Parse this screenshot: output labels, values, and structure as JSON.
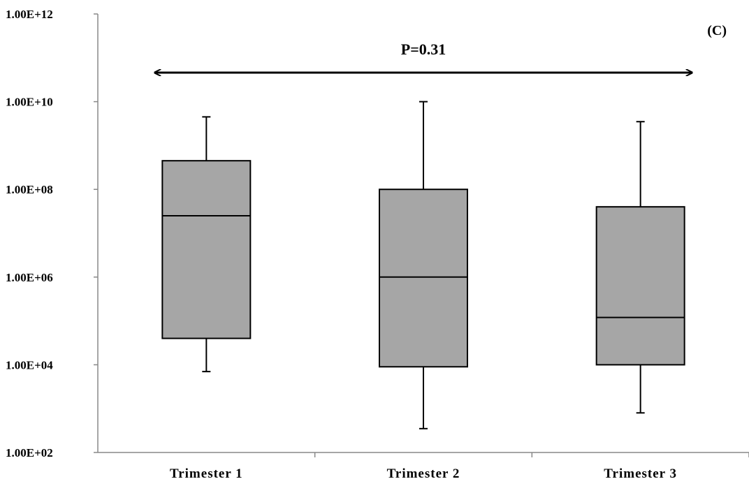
{
  "chart_data": {
    "type": "boxplot",
    "panel_label": "(C)",
    "y_scale": "log10",
    "ylim": [
      100,
      1000000000000
    ],
    "yticks": [
      {
        "value": 100,
        "label": "1.00E+02"
      },
      {
        "value": 10000,
        "label": "1.00E+04"
      },
      {
        "value": 1000000,
        "label": "1.00E+06"
      },
      {
        "value": 100000000,
        "label": "1.00E+08"
      },
      {
        "value": 10000000000,
        "label": "1.00E+10"
      },
      {
        "value": 1000000000000,
        "label": "1.00E+12"
      }
    ],
    "categories": [
      "Trimester 1",
      "Trimester 2",
      "Trimester 3"
    ],
    "boxes": [
      {
        "category": "Trimester 1",
        "min": 7000,
        "q1": 40000,
        "median": 25000000,
        "q3": 450000000,
        "max": 4500000000
      },
      {
        "category": "Trimester 2",
        "min": 350,
        "q1": 9000,
        "median": 1000000,
        "q3": 100000000,
        "max": 10000000000
      },
      {
        "category": "Trimester 3",
        "min": 800,
        "q1": 10000,
        "median": 120000,
        "q3": 40000000,
        "max": 3500000000
      }
    ],
    "annotations": [
      {
        "text": "P=0.31",
        "type": "double-arrow",
        "from": "Trimester 1",
        "to": "Trimester 3"
      }
    ],
    "colors": {
      "box_fill": "#a6a6a6",
      "line": "#000000"
    }
  }
}
